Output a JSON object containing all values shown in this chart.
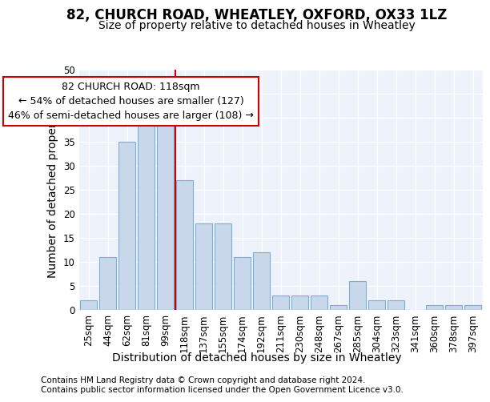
{
  "title": "82, CHURCH ROAD, WHEATLEY, OXFORD, OX33 1LZ",
  "subtitle": "Size of property relative to detached houses in Wheatley",
  "xlabel": "Distribution of detached houses by size in Wheatley",
  "ylabel": "Number of detached properties",
  "footer1": "Contains HM Land Registry data © Crown copyright and database right 2024.",
  "footer2": "Contains public sector information licensed under the Open Government Licence v3.0.",
  "categories": [
    "25sqm",
    "44sqm",
    "62sqm",
    "81sqm",
    "99sqm",
    "118sqm",
    "137sqm",
    "155sqm",
    "174sqm",
    "192sqm",
    "211sqm",
    "230sqm",
    "248sqm",
    "267sqm",
    "285sqm",
    "304sqm",
    "323sqm",
    "341sqm",
    "360sqm",
    "378sqm",
    "397sqm"
  ],
  "values": [
    2,
    11,
    35,
    40,
    42,
    27,
    18,
    18,
    11,
    12,
    3,
    3,
    3,
    1,
    6,
    2,
    2,
    0,
    1,
    1,
    1
  ],
  "bar_color": "#c8d8ea",
  "bar_edge_color": "#7aafd4",
  "highlight_index": 5,
  "highlight_color": "#cc0000",
  "annotation_line1": "82 CHURCH ROAD: 118sqm",
  "annotation_line2": "← 54% of detached houses are smaller (127)",
  "annotation_line3": "46% of semi-detached houses are larger (108) →",
  "annotation_box_color": "#ffffff",
  "annotation_box_edge_color": "#cc0000",
  "ylim": [
    0,
    50
  ],
  "yticks": [
    0,
    5,
    10,
    15,
    20,
    25,
    30,
    35,
    40,
    45,
    50
  ],
  "bg_color": "#eef2fa",
  "title_fontsize": 12,
  "subtitle_fontsize": 10,
  "axis_label_fontsize": 10,
  "tick_fontsize": 8.5,
  "annotation_fontsize": 9,
  "footer_fontsize": 7.5
}
